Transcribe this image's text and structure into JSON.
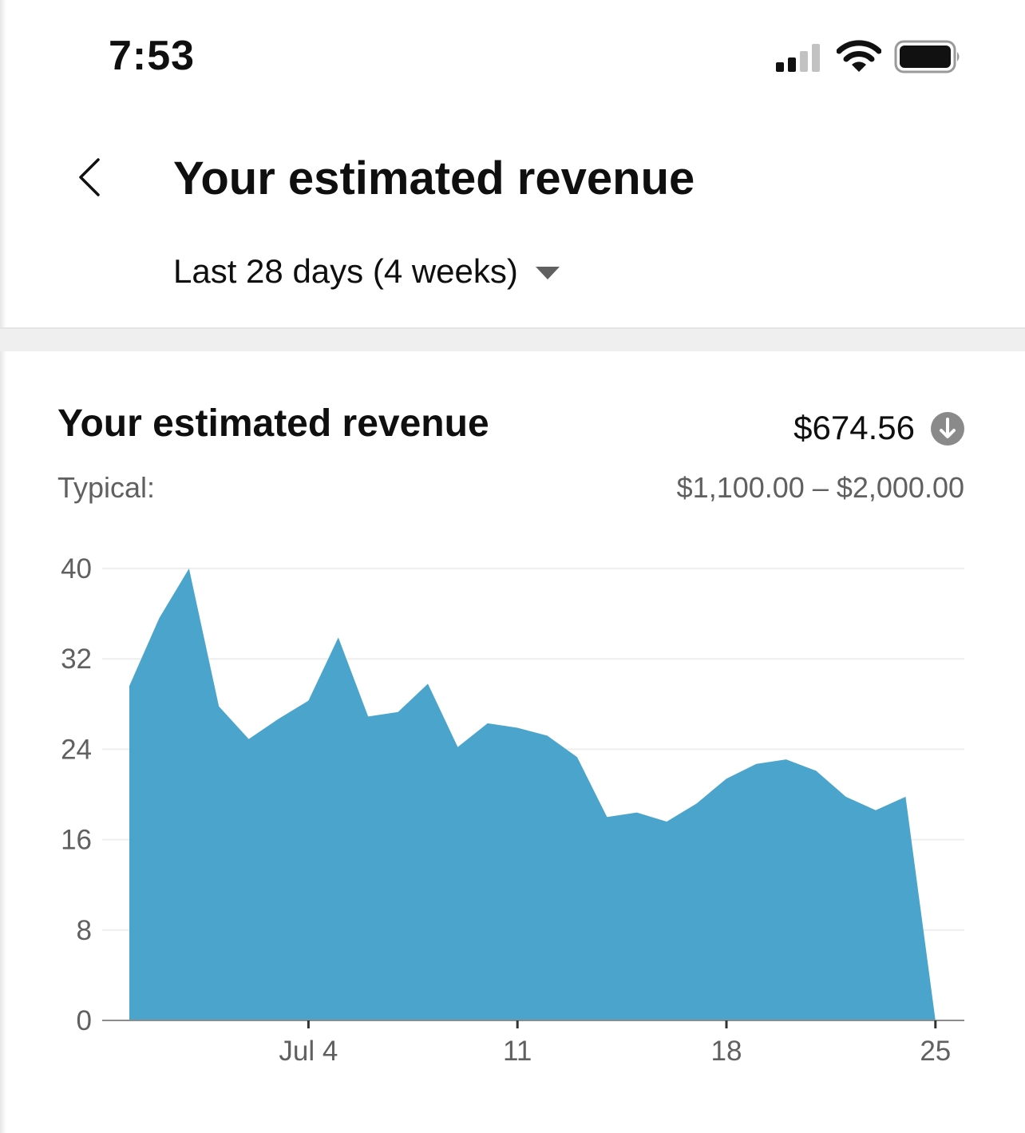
{
  "status_bar": {
    "time": "7:53",
    "icons": [
      "signal-icon",
      "wifi-icon",
      "battery-icon"
    ]
  },
  "header": {
    "back_icon": "chevron-left-icon",
    "title": "Your estimated revenue",
    "period_label": "Last 28 days (4 weeks)",
    "period_icon": "caret-down-icon"
  },
  "card": {
    "title": "Your estimated revenue",
    "value": "$674.56",
    "value_trend_icon": "arrow-down-circle-icon",
    "typical_label": "Typical:",
    "typical_range": "$1,100.00 – $2,000.00"
  },
  "colors": {
    "area_fill": "#4ba4cb",
    "gridline": "#eeeeee",
    "axis": "#8c8c8c",
    "muted_text": "#606060",
    "trend_icon": "#8a8a8a"
  },
  "chart_data": {
    "type": "area",
    "x_tick_labels": [
      "Jul 4",
      "11",
      "18",
      "25"
    ],
    "x_tick_days": [
      4,
      11,
      18,
      25
    ],
    "ylim": [
      0,
      40
    ],
    "y_ticks": [
      0,
      8,
      16,
      24,
      32,
      40
    ],
    "grid": true,
    "series": [
      {
        "days": [
          28,
          29,
          30,
          1,
          2,
          3,
          4,
          5,
          6,
          7,
          8,
          9,
          10,
          11,
          12,
          13,
          14,
          15,
          16,
          17,
          18,
          19,
          20,
          21,
          22,
          23,
          24,
          25
        ],
        "values": [
          29.6,
          35.6,
          40.0,
          27.8,
          24.9,
          26.7,
          28.3,
          33.9,
          26.9,
          27.3,
          29.8,
          24.2,
          26.3,
          25.9,
          25.2,
          23.3,
          18.0,
          18.4,
          17.6,
          19.2,
          21.4,
          22.7,
          23.1,
          22.1,
          19.8,
          18.6,
          19.8,
          0
        ]
      }
    ]
  }
}
